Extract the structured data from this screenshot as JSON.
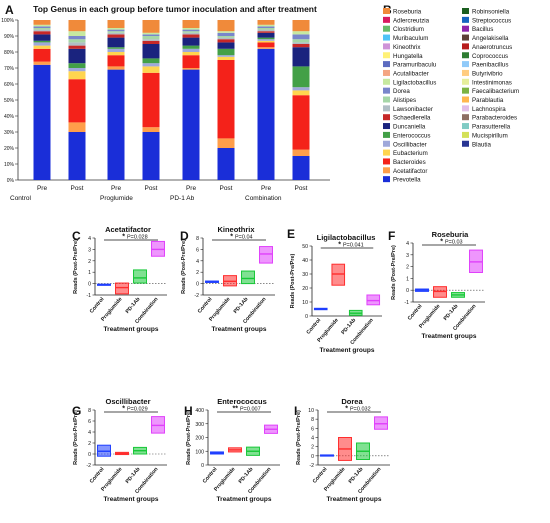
{
  "panel_A": {
    "letter": "A",
    "title": "Top Genus in each group before tumor inoculation and after treatment",
    "y_ticks": [
      "0%",
      "10%",
      "20%",
      "30%",
      "40%",
      "50%",
      "60%",
      "70%",
      "80%",
      "90%",
      "100%"
    ],
    "x_ticks": [
      "Pre",
      "Post",
      "Pre",
      "Post",
      "Pre",
      "Post",
      "Pre",
      "Post"
    ],
    "groups": [
      "Control",
      "Proglumide",
      "PD-1 Ab",
      "Combination"
    ]
  },
  "panel_B": {
    "letter": "B",
    "legend_left": [
      {
        "label": "Roseburia",
        "color": "#f08a3a"
      },
      {
        "label": "Adlercreutzia",
        "color": "#d81b60"
      },
      {
        "label": "Clostridium",
        "color": "#66bb6a"
      },
      {
        "label": "Muribaculum",
        "color": "#4fc3f7"
      },
      {
        "label": "Kineothrix",
        "color": "#ce93d8"
      },
      {
        "label": "Hungatella",
        "color": "#fff176"
      },
      {
        "label": "Paramuribaculu",
        "color": "#5c6bc0"
      },
      {
        "label": "Acutalibacter",
        "color": "#f4a582"
      },
      {
        "label": "Ligilactobacillus",
        "color": "#c7e9a0"
      },
      {
        "label": "Dorea",
        "color": "#7986cb"
      },
      {
        "label": "Alistipes",
        "color": "#a5d6a7"
      },
      {
        "label": "Lawsonibacter",
        "color": "#b0bec5"
      },
      {
        "label": "Schaedlerella",
        "color": "#c62828"
      },
      {
        "label": "Duncaniella",
        "color": "#1a237e"
      },
      {
        "label": "Enterococcus",
        "color": "#43a047"
      },
      {
        "label": "Oscillibacter",
        "color": "#9fa8da"
      },
      {
        "label": "Eubacterium",
        "color": "#ffd54f"
      },
      {
        "label": "Bacteroides",
        "color": "#f4221a"
      },
      {
        "label": "Acetatifactor",
        "color": "#ff9e4a"
      },
      {
        "label": "Prevotella",
        "color": "#1a2ed8"
      }
    ],
    "legend_right": [
      {
        "label": "Robinsoniella",
        "color": "#1b5e20"
      },
      {
        "label": "Streptococcus",
        "color": "#1565c0"
      },
      {
        "label": "Bacillus",
        "color": "#8e24aa"
      },
      {
        "label": "Angelakisella",
        "color": "#5d4037"
      },
      {
        "label": "Anaerotruncus",
        "color": "#b71c1c"
      },
      {
        "label": "Coprococcus",
        "color": "#2e7d32"
      },
      {
        "label": "Paenibacillus",
        "color": "#90caf9"
      },
      {
        "label": "Butyrivibrio",
        "color": "#ffcc80"
      },
      {
        "label": "Intestinimonas",
        "color": "#e6ee9c"
      },
      {
        "label": "Faecalibacterium",
        "color": "#7cb342"
      },
      {
        "label": "Parablautia",
        "color": "#ffb74d"
      },
      {
        "label": "Lachnospira",
        "color": "#e1bee7"
      },
      {
        "label": "Parabacteroides",
        "color": "#8d6e63"
      },
      {
        "label": "Parasutterella",
        "color": "#80cbc4"
      },
      {
        "label": "Mucispirillum",
        "color": "#d4e157"
      },
      {
        "label": "Blautia",
        "color": "#283593"
      }
    ]
  },
  "x_axis_title": "Treatment groups",
  "y_axis_title": "Reads (Post-Pre/Pre)",
  "box_categories": [
    "Control",
    "Proglumide",
    "PD-1Ab",
    "Combination"
  ],
  "box_colors": [
    "#1f3fff",
    "#ff2d2d",
    "#18c838",
    "#e040fb"
  ],
  "panels": [
    {
      "letter": "C",
      "title": "Acetatifactor",
      "stars": "*",
      "pval": "P=0.028",
      "ticks": [
        "-1",
        "0",
        "1",
        "2",
        "3",
        "4"
      ]
    },
    {
      "letter": "D",
      "title": "Kineothrix",
      "stars": "*",
      "pval": "P=0.04",
      "ticks": [
        "-2",
        "0",
        "2",
        "4",
        "6",
        "8"
      ]
    },
    {
      "letter": "E",
      "title": "Ligilactobacillus",
      "stars": "*",
      "pval": "P=0.041",
      "ticks": [
        "0",
        "10",
        "20",
        "30",
        "40",
        "50"
      ]
    },
    {
      "letter": "F",
      "title": "Roseburia",
      "stars": "*",
      "pval": "P=0.03",
      "ticks": [
        "-1",
        "0",
        "1",
        "2",
        "3",
        "4"
      ]
    },
    {
      "letter": "G",
      "title": "Oscillibacter",
      "stars": "*",
      "pval": "P=0.029",
      "ticks": [
        "-2",
        "0",
        "2",
        "4",
        "6",
        "8"
      ]
    },
    {
      "letter": "H",
      "title": "Enterococcus",
      "stars": "**",
      "pval": "P=0.007",
      "ticks": [
        "0",
        "100",
        "200",
        "300",
        "400"
      ]
    },
    {
      "letter": "I",
      "title": "Dorea",
      "stars": "*",
      "pval": "P=0.032",
      "ticks": [
        "-2",
        "0",
        "2",
        "4",
        "6",
        "8",
        "10"
      ]
    }
  ],
  "chart_data": [
    {
      "type": "bar",
      "stacked": true,
      "title": "Top Genus in each group before tumor inoculation and after treatment",
      "ylim": [
        0,
        100
      ],
      "categories": [
        "Pre",
        "Post",
        "Pre",
        "Post",
        "Pre",
        "Post",
        "Pre",
        "Post"
      ],
      "series": [
        {
          "name": "Prevotella",
          "values": [
            72,
            30,
            69,
            30,
            69,
            20,
            82,
            15
          ]
        },
        {
          "name": "Acetatifactor",
          "values": [
            2,
            6,
            2,
            3,
            1,
            6,
            1,
            4
          ]
        },
        {
          "name": "Bacteroides",
          "values": [
            8,
            27,
            7,
            34,
            8,
            49,
            3,
            34
          ]
        },
        {
          "name": "Eubacterium",
          "values": [
            2,
            5,
            2,
            4,
            2,
            2,
            1,
            3
          ]
        },
        {
          "name": "Oscillibacter",
          "values": [
            2,
            2,
            2,
            2,
            2,
            1,
            1,
            2
          ]
        },
        {
          "name": "Enterococcus",
          "values": [
            1,
            3,
            1,
            3,
            2,
            4,
            1,
            13
          ]
        },
        {
          "name": "Duncaniella",
          "values": [
            4,
            9,
            6,
            9,
            5,
            4,
            3,
            12
          ]
        },
        {
          "name": "Schaedlerella",
          "values": [
            2,
            2,
            2,
            2,
            2,
            2,
            1,
            2
          ]
        },
        {
          "name": "Lawsonibacter",
          "values": [
            1,
            2,
            1,
            1,
            1,
            1,
            1,
            1
          ]
        },
        {
          "name": "Alistipes",
          "values": [
            1,
            2,
            1,
            2,
            1,
            1,
            1,
            2
          ]
        },
        {
          "name": "Dorea",
          "values": [
            1,
            2,
            1,
            1,
            1,
            2,
            1,
            3
          ]
        },
        {
          "name": "Ligilactobacillus",
          "values": [
            1,
            3,
            1,
            1,
            1,
            1,
            1,
            2
          ]
        },
        {
          "name": "Roseburia",
          "values": [
            3,
            7,
            5,
            8,
            5,
            7,
            3,
            7
          ]
        }
      ]
    },
    {
      "type": "box",
      "title": "Acetatifactor",
      "categories": [
        "Control",
        "Proglumide",
        "PD-1Ab",
        "Combination"
      ],
      "ylim": [
        -1,
        4
      ],
      "boxes": [
        {
          "low": -0.15,
          "median": -0.1,
          "high": -0.05
        },
        {
          "low": -0.9,
          "median": -0.35,
          "high": 0.05
        },
        {
          "low": 0.05,
          "median": 0.5,
          "high": 1.2
        },
        {
          "low": 2.4,
          "median": 3.0,
          "high": 3.7
        }
      ],
      "annotation": "* P=0.028"
    },
    {
      "type": "box",
      "title": "Kineothrix",
      "categories": [
        "Control",
        "Proglumide",
        "PD-1Ab",
        "Combination"
      ],
      "ylim": [
        -2,
        8
      ],
      "boxes": [
        {
          "low": 0.2,
          "median": 0.3,
          "high": 0.45
        },
        {
          "low": -0.4,
          "median": 0.4,
          "high": 1.4
        },
        {
          "low": 0.0,
          "median": 0.9,
          "high": 2.2
        },
        {
          "low": 3.6,
          "median": 5.2,
          "high": 6.5
        }
      ],
      "annotation": "* P=0.04"
    },
    {
      "type": "box",
      "title": "Ligilactobacillus",
      "categories": [
        "Control",
        "Proglumide",
        "PD-1Ab",
        "Combination"
      ],
      "ylim": [
        0,
        50
      ],
      "boxes": [
        {
          "low": 4.5,
          "median": 5,
          "high": 5.5
        },
        {
          "low": 22,
          "median": 30,
          "high": 37
        },
        {
          "low": 0.5,
          "median": 2,
          "high": 4
        },
        {
          "low": 8,
          "median": 11,
          "high": 15
        }
      ],
      "annotation": "* P=0.041"
    },
    {
      "type": "box",
      "title": "Roseburia",
      "categories": [
        "Control",
        "Proglumide",
        "PD-1Ab",
        "Combination"
      ],
      "ylim": [
        -1,
        4
      ],
      "boxes": [
        {
          "low": -0.1,
          "median": 0.0,
          "high": 0.1
        },
        {
          "low": -0.6,
          "median": -0.1,
          "high": 0.3
        },
        {
          "low": -0.6,
          "median": -0.4,
          "high": -0.2
        },
        {
          "low": 1.5,
          "median": 2.4,
          "high": 3.4
        }
      ],
      "annotation": "* P=0.03"
    },
    {
      "type": "box",
      "title": "Oscillibacter",
      "categories": [
        "Control",
        "Proglumide",
        "PD-1Ab",
        "Combination"
      ],
      "ylim": [
        -2,
        8
      ],
      "boxes": [
        {
          "low": -0.4,
          "median": 0.5,
          "high": 1.6
        },
        {
          "low": -0.1,
          "median": 0.1,
          "high": 0.3
        },
        {
          "low": 0.0,
          "median": 0.6,
          "high": 1.2
        },
        {
          "low": 3.8,
          "median": 5.2,
          "high": 6.8
        }
      ],
      "annotation": "* P=0.029"
    },
    {
      "type": "box",
      "title": "Enterococcus",
      "categories": [
        "Control",
        "Proglumide",
        "PD-1Ab",
        "Combination"
      ],
      "ylim": [
        0,
        400
      ],
      "boxes": [
        {
          "low": 80,
          "median": 88,
          "high": 95
        },
        {
          "low": 95,
          "median": 110,
          "high": 125
        },
        {
          "low": 70,
          "median": 100,
          "high": 130
        },
        {
          "low": 230,
          "median": 260,
          "high": 290
        }
      ],
      "annotation": "** P=0.007"
    },
    {
      "type": "box",
      "title": "Dorea",
      "categories": [
        "Control",
        "Proglumide",
        "PD-1Ab",
        "Combination"
      ],
      "ylim": [
        -2,
        10
      ],
      "boxes": [
        {
          "low": 0.0,
          "median": 0.1,
          "high": 0.2
        },
        {
          "low": -1.0,
          "median": 1.5,
          "high": 4.0
        },
        {
          "low": -0.8,
          "median": 1.0,
          "high": 2.8
        },
        {
          "low": 5.8,
          "median": 7.0,
          "high": 8.5
        }
      ],
      "annotation": "* P=0.032"
    }
  ]
}
